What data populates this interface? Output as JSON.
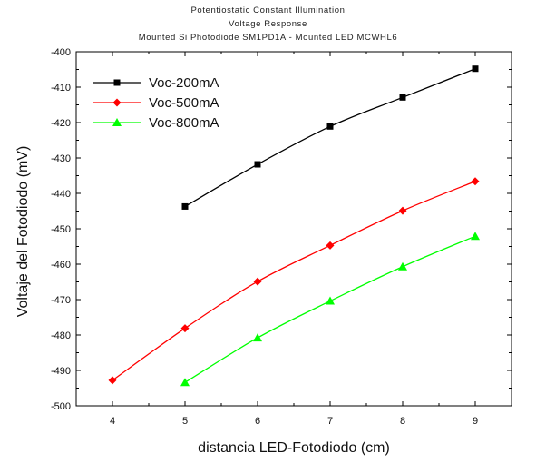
{
  "chart_data": {
    "type": "line",
    "title": [
      "Potentiostatic Constant Illumination",
      "Voltage Response",
      "Mounted Si Photodiode SM1PD1A - Mounted LED MCWHL6"
    ],
    "xlabel": "distancia LED-Fotodiodo (cm)",
    "ylabel": "Voltaje del Fotodiodo (mV)",
    "xlim": [
      3.5,
      9.5
    ],
    "ylim": [
      -500,
      -400
    ],
    "xticks": [
      4,
      5,
      6,
      7,
      8,
      9
    ],
    "yticks": [
      -400,
      -410,
      -420,
      -430,
      -440,
      -450,
      -460,
      -470,
      -480,
      -490,
      -500
    ],
    "grid": false,
    "legend_position": "top-left",
    "series": [
      {
        "name": "Voc-200mA",
        "color": "#000000",
        "marker": "square",
        "x": [
          5,
          6,
          7,
          8,
          9
        ],
        "y": [
          -443.7,
          -431.8,
          -421.1,
          -412.9,
          -404.8
        ]
      },
      {
        "name": "Voc-500mA",
        "color": "#ff0000",
        "marker": "diamond",
        "x": [
          4,
          5,
          6,
          7,
          8,
          9
        ],
        "y": [
          -492.8,
          -478.1,
          -464.9,
          -454.7,
          -444.9,
          -436.6
        ]
      },
      {
        "name": "Voc-800mA",
        "color": "#00ff00",
        "marker": "triangle",
        "x": [
          5,
          6,
          7,
          8,
          9
        ],
        "y": [
          -493.4,
          -480.8,
          -470.4,
          -460.7,
          -452.1
        ]
      }
    ]
  }
}
